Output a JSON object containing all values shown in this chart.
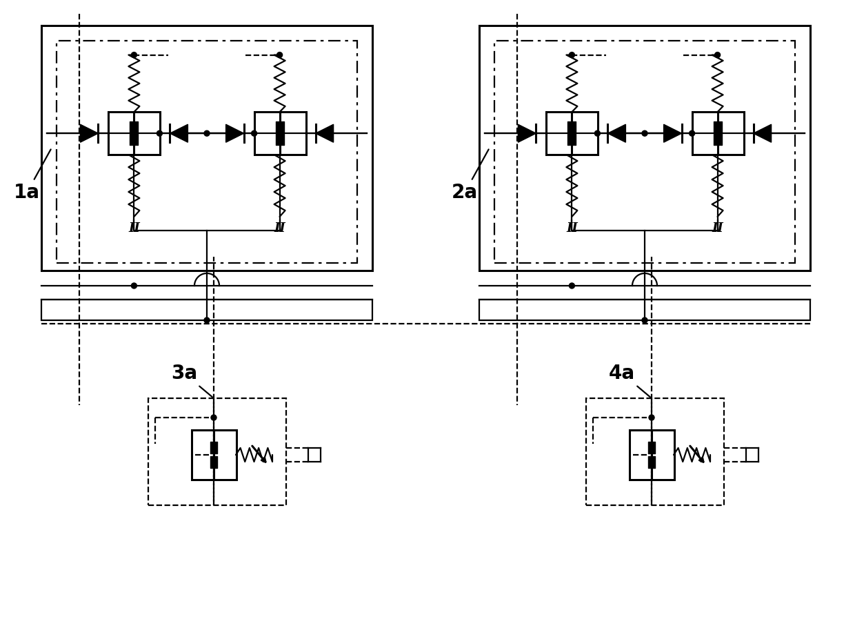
{
  "background": "#ffffff",
  "line_color": "#000000",
  "lw": 1.6,
  "lw_thick": 2.2,
  "lw_thin": 1.2,
  "label_3a": "3a",
  "label_4a": "4a",
  "label_1a": "1a",
  "label_2a": "2a",
  "label_fontsize": 20,
  "fig_width": 12.4,
  "fig_height": 9.07,
  "dpi": 100
}
